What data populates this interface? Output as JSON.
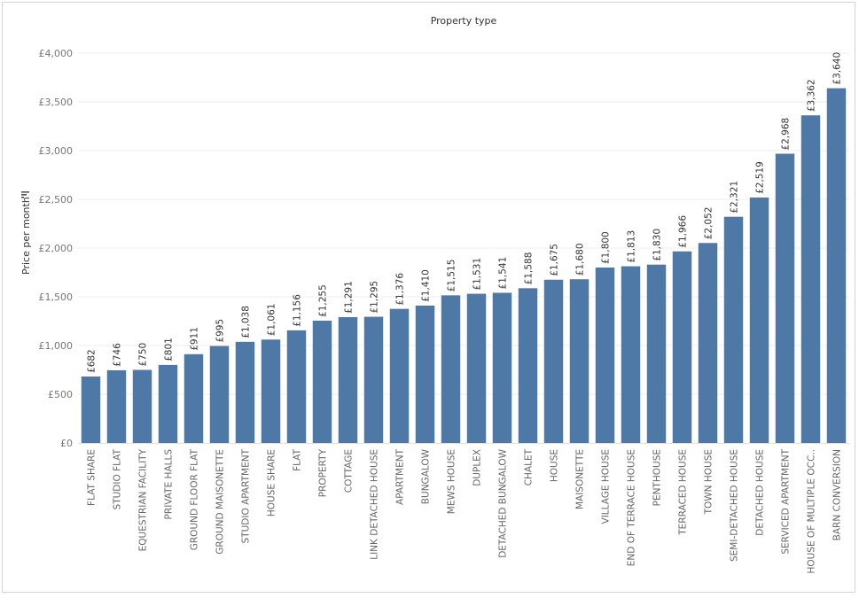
{
  "chart_data": {
    "type": "bar",
    "title": "Property type",
    "xlabel": "",
    "ylabel": "Price per month",
    "ylim": [
      0,
      4000
    ],
    "yticks": [
      {
        "value": 0,
        "label": "£0"
      },
      {
        "value": 500,
        "label": "£500"
      },
      {
        "value": 1000,
        "label": "£1,000"
      },
      {
        "value": 1500,
        "label": "£1,500"
      },
      {
        "value": 2000,
        "label": "£2,000"
      },
      {
        "value": 2500,
        "label": "£2,500"
      },
      {
        "value": 3000,
        "label": "£3,000"
      },
      {
        "value": 3500,
        "label": "£3,500"
      },
      {
        "value": 4000,
        "label": "£4,000"
      }
    ],
    "grid": true,
    "bar_color": "#4e79a7",
    "sort_icon": "sort-descending-icon",
    "categories": [
      "FLAT SHARE",
      "STUDIO FLAT",
      "EQUESTRIAN FACILITY",
      "PRIVATE HALLS",
      "GROUND FLOOR FLAT",
      "GROUND MAISONETTE",
      "STUDIO APARTMENT",
      "HOUSE SHARE",
      "FLAT",
      "PROPERTY",
      "COTTAGE",
      "LINK DETACHED HOUSE",
      "APARTMENT",
      "BUNGALOW",
      "MEWS HOUSE",
      "DUPLEX",
      "DETACHED BUNGALOW",
      "CHALET",
      "HOUSE",
      "MAISONETTE",
      "VILLAGE HOUSE",
      "END OF TERRACE HOUSE",
      "PENTHOUSE",
      "TERRACED HOUSE",
      "TOWN HOUSE",
      "SEMI-DETACHED HOUSE",
      "DETACHED HOUSE",
      "SERVICED APARTMENT",
      "HOUSE OF MULTIPLE OCC..",
      "BARN CONVERSION"
    ],
    "values": [
      682,
      746,
      750,
      801,
      911,
      995,
      1038,
      1061,
      1156,
      1255,
      1291,
      1295,
      1376,
      1410,
      1515,
      1531,
      1541,
      1588,
      1675,
      1680,
      1800,
      1813,
      1830,
      1966,
      2052,
      2321,
      2519,
      2968,
      3362,
      3640
    ],
    "value_labels": [
      "£682",
      "£746",
      "£750",
      "£801",
      "£911",
      "£995",
      "£1,038",
      "£1,061",
      "£1,156",
      "£1,255",
      "£1,291",
      "£1,295",
      "£1,376",
      "£1,410",
      "£1,515",
      "£1,531",
      "£1,541",
      "£1,588",
      "£1,675",
      "£1,680",
      "£1,800",
      "£1,813",
      "£1,830",
      "£1,966",
      "£2,052",
      "£2,321",
      "£2,519",
      "£2,968",
      "£3,362",
      "£3,640"
    ]
  }
}
